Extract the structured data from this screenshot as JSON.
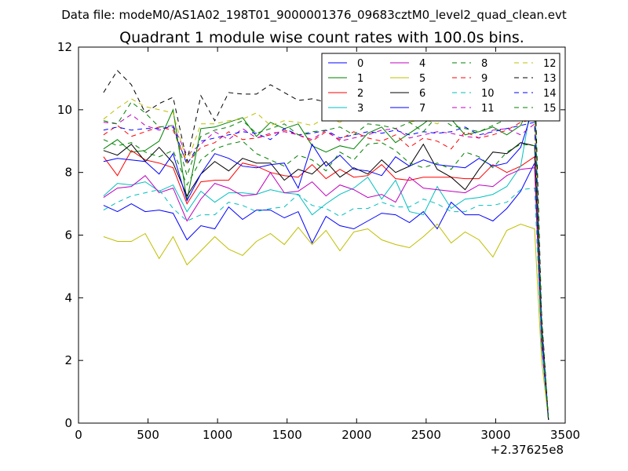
{
  "header": {
    "data_file": "Data file: modeM0/AS1A02_198T01_9000001376_09683cztM0_level2_quad_clean.evt"
  },
  "chart_data": {
    "type": "line",
    "title": "Quadrant 1 module wise count rates with 100.0s bins.",
    "xlabel": "",
    "ylabel": "",
    "x_offset_label": "+2.37625e8",
    "xlim": [
      0,
      3500
    ],
    "ylim": [
      0,
      12
    ],
    "xticks": [
      0,
      500,
      1000,
      1500,
      2000,
      2500,
      3000,
      3500
    ],
    "yticks": [
      0,
      2,
      4,
      6,
      8,
      10,
      12
    ],
    "grid": false,
    "legend_position": "top-right",
    "legend_columns": 4,
    "x": [
      180,
      280,
      380,
      480,
      580,
      680,
      780,
      880,
      980,
      1080,
      1180,
      1280,
      1380,
      1480,
      1580,
      1680,
      1780,
      1880,
      1980,
      2080,
      2180,
      2280,
      2380,
      2480,
      2580,
      2680,
      2780,
      2880,
      2980,
      3080,
      3180,
      3280,
      3330,
      3380
    ],
    "series": [
      {
        "name": "0",
        "color": "#0000ff",
        "dash": "solid",
        "values": [
          6.95,
          6.75,
          7.0,
          6.75,
          6.8,
          6.7,
          5.85,
          6.3,
          6.2,
          6.9,
          6.5,
          6.8,
          6.8,
          6.55,
          6.75,
          5.75,
          6.6,
          6.3,
          6.2,
          6.45,
          6.7,
          6.65,
          6.4,
          6.75,
          6.2,
          7.05,
          6.65,
          6.65,
          6.45,
          6.85,
          7.4,
          8.3,
          2.5,
          0.1
        ]
      },
      {
        "name": "1",
        "color": "#008000",
        "dash": "solid",
        "values": [
          8.75,
          9.05,
          8.65,
          8.7,
          9.0,
          10.0,
          7.1,
          9.4,
          9.45,
          9.6,
          9.75,
          9.15,
          9.6,
          9.4,
          9.55,
          8.85,
          8.65,
          8.85,
          8.75,
          9.25,
          9.45,
          8.95,
          9.25,
          9.55,
          9.9,
          9.7,
          9.2,
          9.3,
          9.45,
          9.2,
          9.5,
          10.5,
          3.0,
          0.15
        ]
      },
      {
        "name": "2",
        "color": "#ff0000",
        "dash": "solid",
        "values": [
          8.5,
          7.9,
          8.7,
          8.4,
          8.3,
          8.15,
          7.0,
          7.7,
          7.75,
          7.75,
          8.3,
          8.2,
          8.0,
          7.9,
          7.85,
          8.25,
          7.8,
          8.1,
          7.85,
          7.9,
          8.25,
          7.8,
          7.75,
          7.85,
          7.85,
          7.85,
          7.8,
          7.8,
          8.25,
          8.0,
          8.2,
          8.5,
          2.8,
          0.1
        ]
      },
      {
        "name": "3",
        "color": "#00bfbf",
        "dash": "solid",
        "values": [
          7.25,
          7.65,
          7.6,
          7.7,
          7.4,
          7.6,
          6.75,
          7.4,
          7.05,
          7.35,
          7.35,
          7.3,
          7.45,
          7.35,
          7.3,
          6.65,
          7.0,
          7.3,
          7.5,
          7.85,
          7.15,
          7.75,
          6.75,
          6.65,
          7.55,
          6.85,
          7.15,
          7.2,
          7.3,
          7.55,
          8.2,
          10.8,
          2.9,
          0.1
        ]
      },
      {
        "name": "4",
        "color": "#bf00bf",
        "dash": "solid",
        "values": [
          7.2,
          7.5,
          7.55,
          7.9,
          7.35,
          7.5,
          6.45,
          7.15,
          7.65,
          7.5,
          7.25,
          7.3,
          8.0,
          7.35,
          7.4,
          7.7,
          7.25,
          7.6,
          7.45,
          7.2,
          7.3,
          7.05,
          7.85,
          7.5,
          7.45,
          7.4,
          7.35,
          7.6,
          7.55,
          7.9,
          8.1,
          8.15,
          2.7,
          0.1
        ]
      },
      {
        "name": "5",
        "color": "#bfbf00",
        "dash": "solid",
        "values": [
          5.95,
          5.8,
          5.8,
          6.05,
          5.25,
          5.95,
          5.05,
          5.5,
          5.95,
          5.55,
          5.35,
          5.8,
          6.05,
          5.7,
          6.25,
          5.7,
          6.15,
          5.5,
          6.1,
          6.2,
          5.85,
          5.7,
          5.6,
          5.95,
          6.35,
          5.75,
          6.1,
          5.85,
          5.3,
          6.15,
          6.35,
          6.2,
          2.0,
          0.1
        ]
      },
      {
        "name": "6",
        "color": "#000000",
        "dash": "solid",
        "values": [
          8.7,
          8.55,
          8.9,
          8.35,
          8.8,
          8.3,
          7.25,
          7.95,
          8.35,
          8.05,
          8.45,
          8.3,
          8.3,
          7.75,
          8.1,
          7.95,
          8.35,
          7.85,
          8.15,
          7.95,
          8.4,
          8.0,
          8.2,
          8.9,
          8.1,
          7.85,
          7.45,
          8.1,
          8.65,
          8.6,
          8.95,
          8.85,
          3.0,
          0.1
        ]
      },
      {
        "name": "7",
        "color": "#0000ff",
        "dash": "solid",
        "values": [
          8.35,
          8.45,
          8.4,
          8.35,
          7.95,
          8.6,
          7.1,
          7.95,
          8.6,
          8.45,
          8.2,
          8.15,
          8.25,
          8.3,
          7.5,
          8.9,
          8.2,
          8.55,
          8.1,
          8.05,
          7.9,
          8.5,
          8.2,
          8.4,
          8.25,
          8.2,
          8.15,
          8.45,
          8.2,
          8.3,
          8.8,
          10.2,
          3.2,
          0.1
        ]
      },
      {
        "name": "8",
        "color": "#008000",
        "dash": "dashed",
        "values": [
          9.05,
          8.85,
          8.95,
          8.65,
          8.5,
          8.7,
          7.6,
          8.4,
          8.75,
          8.9,
          9.0,
          8.6,
          8.4,
          8.2,
          8.55,
          8.4,
          8.05,
          8.65,
          8.4,
          8.9,
          8.95,
          8.7,
          8.3,
          8.15,
          8.3,
          8.1,
          8.65,
          8.5,
          8.15,
          8.65,
          8.9,
          8.85,
          2.9,
          0.1
        ]
      },
      {
        "name": "9",
        "color": "#ff0000",
        "dash": "dashed",
        "values": [
          9.2,
          9.5,
          9.15,
          9.3,
          9.45,
          9.35,
          8.3,
          8.8,
          8.95,
          9.3,
          9.05,
          9.1,
          9.2,
          9.35,
          9.2,
          9.0,
          9.3,
          9.05,
          9.3,
          9.1,
          9.0,
          9.2,
          8.8,
          9.1,
          9.0,
          8.75,
          9.3,
          9.1,
          9.2,
          9.35,
          9.6,
          9.7,
          3.1,
          0.1
        ]
      },
      {
        "name": "10",
        "color": "#00bfbf",
        "dash": "dashed",
        "values": [
          6.8,
          7.05,
          7.25,
          7.35,
          7.45,
          6.85,
          6.45,
          6.65,
          6.65,
          7.05,
          6.95,
          6.75,
          6.85,
          6.9,
          7.3,
          6.95,
          6.85,
          6.6,
          6.85,
          6.85,
          7.05,
          6.9,
          6.9,
          7.15,
          7.0,
          6.75,
          6.75,
          6.95,
          6.95,
          7.05,
          7.45,
          7.5,
          2.5,
          0.1
        ]
      },
      {
        "name": "11",
        "color": "#bf00bf",
        "dash": "dashed",
        "values": [
          9.6,
          9.55,
          9.85,
          9.5,
          9.35,
          9.5,
          8.55,
          8.9,
          9.3,
          9.05,
          9.4,
          9.1,
          9.25,
          9.3,
          9.2,
          9.05,
          9.35,
          9.0,
          9.1,
          9.2,
          9.35,
          9.4,
          9.1,
          9.2,
          9.3,
          9.25,
          9.15,
          9.1,
          9.35,
          9.4,
          9.2,
          9.55,
          3.2,
          0.1
        ]
      },
      {
        "name": "12",
        "color": "#bfbf00",
        "dash": "dashed",
        "values": [
          9.7,
          10.05,
          10.35,
          10.1,
          10.0,
          9.9,
          8.3,
          9.55,
          9.55,
          9.65,
          9.7,
          9.9,
          9.5,
          9.65,
          9.6,
          9.5,
          9.75,
          9.6,
          9.8,
          9.75,
          9.95,
          9.85,
          9.6,
          9.7,
          9.55,
          9.85,
          10.1,
          9.9,
          9.75,
          10.0,
          10.1,
          10.2,
          3.3,
          0.1
        ]
      },
      {
        "name": "13",
        "color": "#000000",
        "dash": "dashed",
        "values": [
          10.55,
          11.25,
          10.8,
          9.9,
          10.2,
          10.4,
          8.35,
          10.45,
          9.65,
          10.55,
          10.5,
          10.5,
          10.8,
          10.55,
          10.3,
          10.35,
          10.25,
          10.15,
          10.2,
          10.3,
          10.25,
          10.15,
          10.35,
          10.3,
          10.2,
          10.55,
          10.35,
          10.25,
          10.45,
          11.25,
          11.1,
          11.2,
          3.5,
          0.1
        ]
      },
      {
        "name": "14",
        "color": "#0000ff",
        "dash": "dashed",
        "values": [
          9.35,
          9.45,
          9.35,
          9.4,
          9.4,
          9.45,
          8.25,
          9.0,
          9.1,
          9.2,
          9.3,
          9.25,
          9.05,
          9.4,
          9.2,
          9.25,
          9.35,
          9.1,
          9.2,
          9.3,
          9.25,
          9.35,
          9.2,
          9.3,
          9.25,
          9.3,
          9.45,
          9.2,
          9.3,
          9.4,
          9.5,
          9.6,
          3.1,
          0.1
        ]
      },
      {
        "name": "15",
        "color": "#008000",
        "dash": "dashed",
        "values": [
          9.65,
          9.55,
          10.25,
          9.9,
          9.45,
          9.5,
          7.9,
          9.15,
          9.35,
          9.45,
          9.65,
          9.25,
          9.4,
          9.55,
          9.2,
          9.3,
          9.35,
          9.45,
          9.2,
          9.55,
          9.5,
          9.4,
          9.6,
          9.3,
          9.8,
          9.5,
          9.4,
          9.3,
          9.5,
          9.7,
          10.3,
          10.35,
          3.4,
          0.12
        ]
      }
    ]
  }
}
